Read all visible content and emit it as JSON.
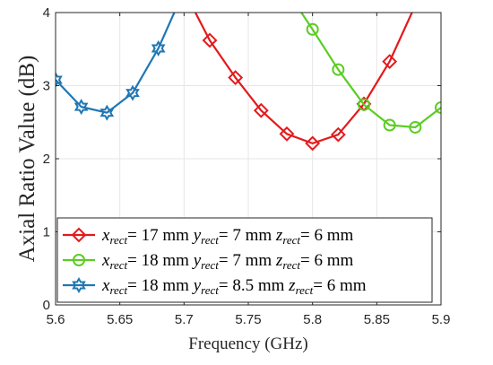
{
  "chart_data": {
    "type": "line",
    "xlabel": "Frequency (GHz)",
    "ylabel": "Axial Ratio Value (dB)",
    "xlim": [
      5.6,
      5.9
    ],
    "ylim": [
      0,
      4
    ],
    "xticks": [
      "5.6",
      "5.65",
      "5.7",
      "5.75",
      "5.8",
      "5.85",
      "5.9"
    ],
    "yticks": [
      "0",
      "1",
      "2",
      "3",
      "4"
    ],
    "grid": true,
    "legend_position": "bottom-left",
    "series": [
      {
        "name": "x_rect= 17 mm y_rect= 7 mm z_rect= 6 mm",
        "label_parts": [
          {
            "sym": "x",
            "sub": "rect",
            "val": "= 17 mm "
          },
          {
            "sym": "y",
            "sub": "rect",
            "val": "= 7 mm "
          },
          {
            "sym": "z",
            "sub": "rect",
            "val": "= 6 mm"
          }
        ],
        "color": "#e31a1c",
        "marker": "diamond",
        "x": [
          5.7,
          5.72,
          5.74,
          5.76,
          5.78,
          5.8,
          5.82,
          5.84,
          5.86,
          5.88
        ],
        "y": [
          4.3,
          3.62,
          3.11,
          2.66,
          2.34,
          2.21,
          2.33,
          2.75,
          3.33,
          4.1
        ]
      },
      {
        "name": "x_rect= 18 mm y_rect= 7 mm z_rect= 6 mm",
        "label_parts": [
          {
            "sym": "x",
            "sub": "rect",
            "val": "= 18 mm "
          },
          {
            "sym": "y",
            "sub": "rect",
            "val": "= 7 mm "
          },
          {
            "sym": "z",
            "sub": "rect",
            "val": "= 6 mm"
          }
        ],
        "color": "#5ccc24",
        "marker": "circle",
        "x": [
          5.78,
          5.8,
          5.82,
          5.84,
          5.86,
          5.88,
          5.9
        ],
        "y": [
          4.3,
          3.77,
          3.22,
          2.74,
          2.46,
          2.43,
          2.7
        ]
      },
      {
        "name": "x_rect= 18 mm y_rect= 8.5 mm z_rect= 6 mm",
        "label_parts": [
          {
            "sym": "x",
            "sub": "rect",
            "val": "= 18 mm "
          },
          {
            "sym": "y",
            "sub": "rect",
            "val": "= 8.5 mm "
          },
          {
            "sym": "z",
            "sub": "rect",
            "val": "= 6 mm"
          }
        ],
        "color": "#1f77b4",
        "marker": "hexagram",
        "x": [
          5.6,
          5.62,
          5.64,
          5.66,
          5.68,
          5.7
        ],
        "y": [
          3.08,
          2.71,
          2.63,
          2.9,
          3.51,
          4.3
        ]
      }
    ]
  }
}
